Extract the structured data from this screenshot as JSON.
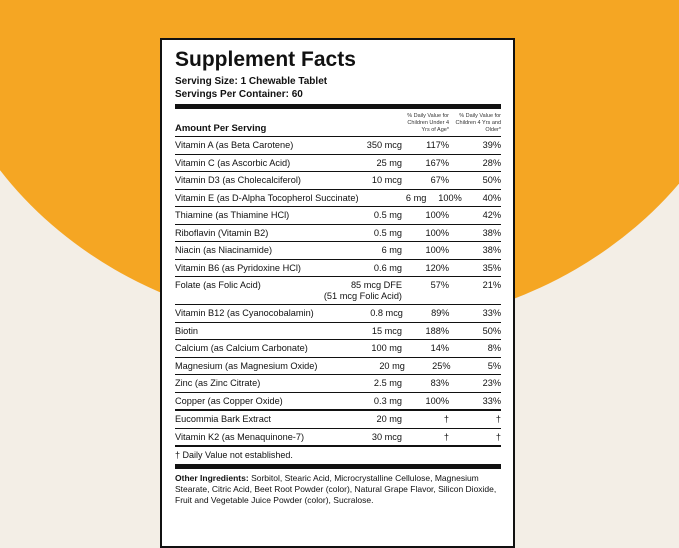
{
  "label": {
    "title": "Supplement Facts",
    "serving_size": "Serving Size: 1 Chewable Tablet",
    "servings_per_container": "Servings Per Container: 60",
    "amount_header": "Amount Per Serving",
    "dv_header_under_4": "% Daily Value for Children Under 4 Yrs of Age*",
    "dv_header_4_plus": "% Daily Value for Children 4 Yrs and Older*",
    "sections": [
      {
        "rows": [
          {
            "name": "Vitamin A (as Beta Carotene)",
            "amount": "350 mcg",
            "dv_under_4": "117%",
            "dv_4_plus": "39%"
          },
          {
            "name": "Vitamin C (as Ascorbic Acid)",
            "amount": "25 mg",
            "dv_under_4": "167%",
            "dv_4_plus": "28%"
          },
          {
            "name": "Vitamin D3 (as Cholecalciferol)",
            "amount": "10 mcg",
            "dv_under_4": "67%",
            "dv_4_plus": "50%"
          },
          {
            "name": "Vitamin E (as D-Alpha Tocopherol Succinate)",
            "amount": "6 mg",
            "dv_under_4": "100%",
            "dv_4_plus": "40%"
          },
          {
            "name": "Thiamine (as Thiamine HCl)",
            "amount": "0.5 mg",
            "dv_under_4": "100%",
            "dv_4_plus": "42%"
          },
          {
            "name": "Riboflavin (Vitamin B2)",
            "amount": "0.5 mg",
            "dv_under_4": "100%",
            "dv_4_plus": "38%"
          },
          {
            "name": "Niacin (as Niacinamide)",
            "amount": "6 mg",
            "dv_under_4": "100%",
            "dv_4_plus": "38%"
          },
          {
            "name": "Vitamin B6 (as Pyridoxine HCl)",
            "amount": "0.6 mg",
            "dv_under_4": "120%",
            "dv_4_plus": "35%"
          },
          {
            "name": "Folate (as Folic Acid)",
            "amount": "85 mcg DFE",
            "amount_note": "(51 mcg Folic Acid)",
            "dv_under_4": "57%",
            "dv_4_plus": "21%"
          },
          {
            "name": "Vitamin B12 (as Cyanocobalamin)",
            "amount": "0.8 mcg",
            "dv_under_4": "89%",
            "dv_4_plus": "33%"
          },
          {
            "name": "Biotin",
            "amount": "15 mcg",
            "dv_under_4": "188%",
            "dv_4_plus": "50%"
          },
          {
            "name": "Calcium (as Calcium Carbonate)",
            "amount": "100 mg",
            "dv_under_4": "14%",
            "dv_4_plus": "8%"
          },
          {
            "name": "Magnesium (as Magnesium Oxide)",
            "amount": "20 mg",
            "dv_under_4": "25%",
            "dv_4_plus": "5%"
          },
          {
            "name": "Zinc (as Zinc Citrate)",
            "amount": "2.5 mg",
            "dv_under_4": "83%",
            "dv_4_plus": "23%"
          },
          {
            "name": "Copper (as Copper Oxide)",
            "amount": "0.3 mg",
            "dv_under_4": "100%",
            "dv_4_plus": "33%"
          }
        ]
      },
      {
        "rows": [
          {
            "name": "Eucommia Bark Extract",
            "amount": "20 mg",
            "dv_under_4": "†",
            "dv_4_plus": "†"
          },
          {
            "name": "Vitamin K2 (as Menaquinone-7)",
            "amount": "30 mcg",
            "dv_under_4": "†",
            "dv_4_plus": "†"
          }
        ]
      }
    ],
    "footnote": "† Daily Value not established.",
    "other_ingredients_label": "Other Ingredients:",
    "other_ingredients": "Sorbitol, Stearic Acid, Microcrystalline Cellulose, Magnesium Stearate, Citric Acid, Beet Root Powder (color), Natural Grape Flavor, Silicon Dioxide, Fruit and Vegetable Juice Powder (color), Sucralose."
  }
}
